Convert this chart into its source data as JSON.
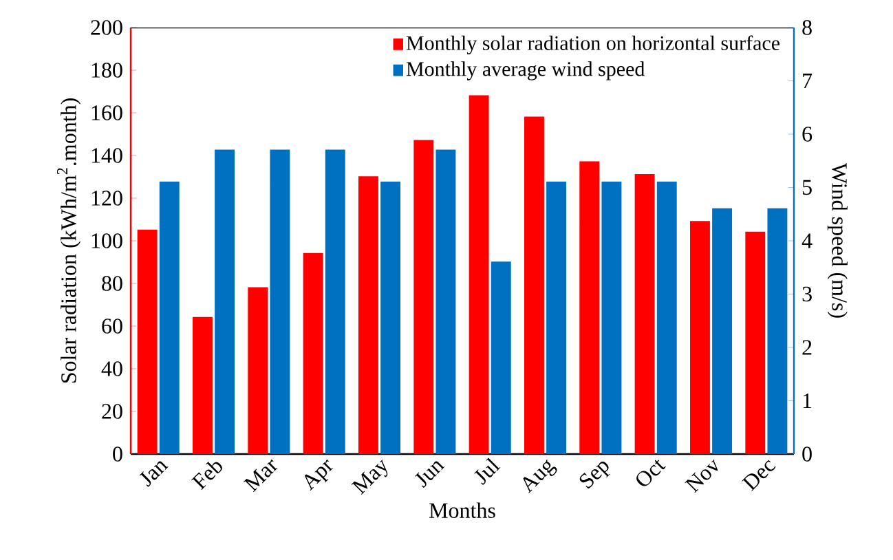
{
  "chart_data": {
    "type": "bar",
    "xlabel": "Months",
    "ylabel": "Solar radiation (kWh/m$^{2}$.month)",
    "y2label": "Wind speed (m/s)",
    "categories": [
      "Jan",
      "Feb",
      "Mar",
      "Apr",
      "May",
      "Jun",
      "Jul",
      "Aug",
      "Sep",
      "Oct",
      "Nov",
      "Dec"
    ],
    "series": [
      {
        "name": "Monthly solar radiation on horizontal surface",
        "color": "#ff0000",
        "values": [
          105,
          64,
          78,
          94,
          130,
          147,
          168,
          158,
          137,
          131,
          109,
          104
        ]
      },
      {
        "name": "Monthly average wind speed",
        "color": "#0070c0",
        "axis": "y2",
        "values": [
          5.1,
          5.7,
          5.7,
          5.7,
          5.1,
          5.7,
          3.6,
          5.1,
          5.1,
          5.1,
          4.6,
          4.6
        ]
      }
    ],
    "ylim": [
      0,
      200
    ],
    "yticks": [
      0,
      20,
      40,
      60,
      80,
      100,
      120,
      140,
      160,
      180,
      200
    ],
    "y2lim": [
      0,
      8
    ],
    "y2ticks": [
      0,
      1,
      2,
      3,
      4,
      5,
      6,
      7,
      8
    ],
    "legend": "top right",
    "grid": false
  }
}
